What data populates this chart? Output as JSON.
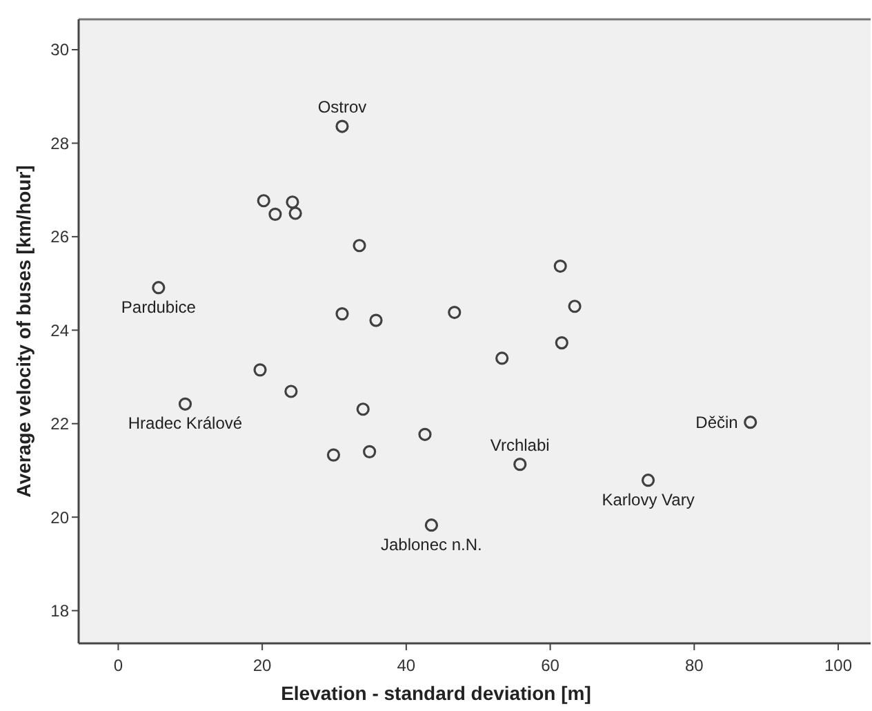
{
  "chart_data": {
    "type": "scatter",
    "xlabel": "Elevation - standard deviation [m]",
    "ylabel": "Average velocity of buses [km/hour]",
    "xlim": [
      -5.5,
      104.5
    ],
    "ylim": [
      17.3,
      30.65
    ],
    "xticks": [
      0,
      20,
      40,
      60,
      80,
      100
    ],
    "yticks": [
      18,
      20,
      22,
      24,
      26,
      28,
      30
    ],
    "grid": false,
    "marker": "circle",
    "series": [
      {
        "color": "#404040",
        "x": [
          31.1,
          20.2,
          24.2,
          21.8,
          24.6,
          33.5,
          5.6,
          31.1,
          35.8,
          61.4,
          63.4,
          46.7,
          61.6,
          53.3,
          87.8,
          42.6,
          55.8,
          73.6,
          43.5,
          19.7,
          24.0,
          9.3,
          34.0,
          29.9,
          34.9
        ],
        "values": [
          28.36,
          26.77,
          26.74,
          26.48,
          26.5,
          25.81,
          24.91,
          24.35,
          24.21,
          25.37,
          24.51,
          24.38,
          23.73,
          23.4,
          22.03,
          21.77,
          21.13,
          20.79,
          19.83,
          23.15,
          22.69,
          22.42,
          22.31,
          21.33,
          21.4
        ]
      }
    ],
    "annotations": [
      {
        "text": "Ostrov",
        "x": 31.1,
        "y": 28.36
      },
      {
        "text": "Pardubice",
        "x": 5.6,
        "y": 24.91
      },
      {
        "text": "Hradec Králové",
        "x": 9.3,
        "y": 22.42
      },
      {
        "text": "Jablonec n.N.",
        "x": 43.5,
        "y": 19.83
      },
      {
        "text": "Karlovy Vary",
        "x": 73.6,
        "y": 20.79
      },
      {
        "text": "Vrchlabi",
        "x": 55.8,
        "y": 21.13
      },
      {
        "text": "Děčin",
        "x": 87.8,
        "y": 22.03
      }
    ]
  }
}
